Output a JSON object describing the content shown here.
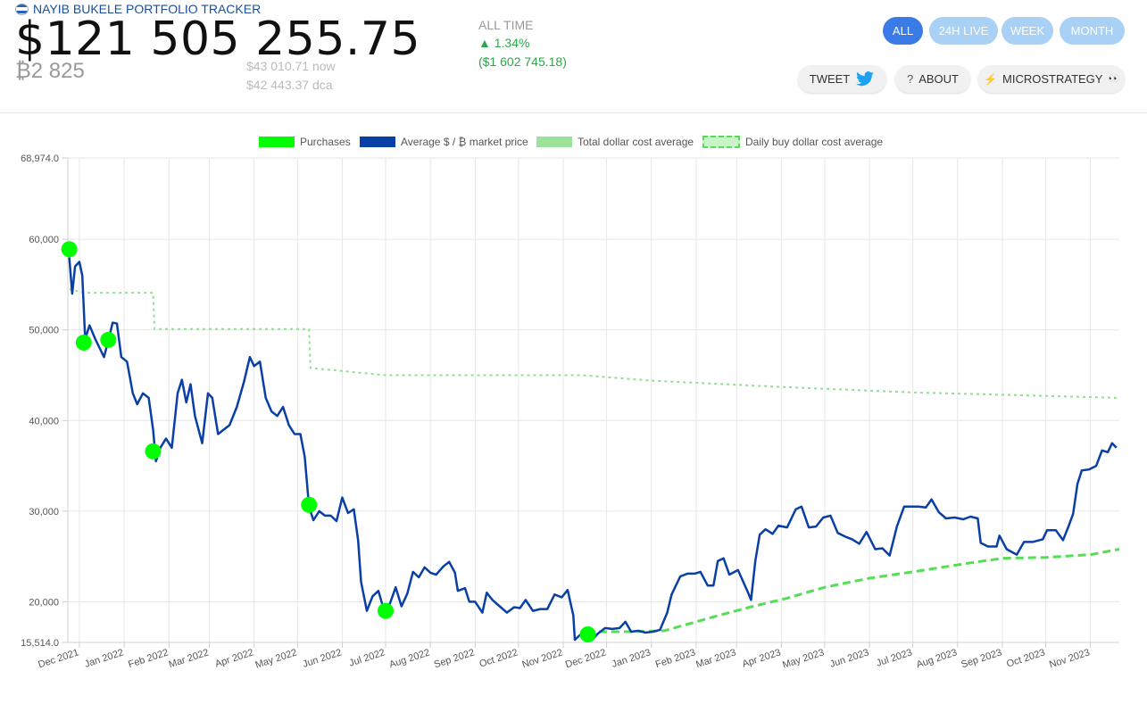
{
  "header": {
    "brand": "NAYIB BUKELE PORTFOLIO TRACKER",
    "value": "$121 505 255.75",
    "btc": "₿2 825",
    "now": "$43 010.71 now",
    "dca": "$42 443.37 dca",
    "alltime_label": "ALL TIME",
    "alltime_pct": "▲ 1.34%",
    "alltime_usd": "($1 602 745.18)"
  },
  "range_buttons": [
    "ALL",
    "24H LIVE",
    "WEEK",
    "MONTH"
  ],
  "actions": {
    "tweet": "TWEET",
    "about": "ABOUT",
    "micro": "MICROSTRATEGY",
    "micro_emoji": "👀",
    "about_icon": "?",
    "micro_icon": "⚡"
  },
  "colors": {
    "purchase": "#00ff00",
    "market": "#0a3fa6",
    "total_dca": "#90e090",
    "daily_dca": "#55dd55",
    "active": "#3a7be8",
    "inactive": "#a9d0f5"
  },
  "chart_data": {
    "type": "line",
    "legend": [
      "Purchases",
      "Average $ / ₿ market price",
      "Total dollar cost average",
      "Daily buy dollar cost average"
    ],
    "ylim": [
      15514.0,
      68974.0
    ],
    "y_ticks": [
      15514.0,
      20000,
      30000,
      40000,
      50000,
      60000,
      68974.0
    ],
    "y_tick_labels": [
      "15,514.0",
      "20,000",
      "30,000",
      "40,000",
      "50,000",
      "60,000",
      "68,974.0"
    ],
    "x_range": [
      "2021-11-23",
      "2023-11-21"
    ],
    "x_ticks": [
      "2021-12-01",
      "2022-01-01",
      "2022-02-01",
      "2022-03-01",
      "2022-04-01",
      "2022-05-01",
      "2022-06-01",
      "2022-07-01",
      "2022-08-01",
      "2022-09-01",
      "2022-10-01",
      "2022-11-01",
      "2022-12-01",
      "2023-01-01",
      "2023-02-01",
      "2023-03-01",
      "2023-04-01",
      "2023-05-01",
      "2023-06-01",
      "2023-07-01",
      "2023-08-01",
      "2023-09-01",
      "2023-10-01",
      "2023-11-01"
    ],
    "x_tick_labels": [
      "Dec 2021",
      "Jan 2022",
      "Feb 2022",
      "Mar 2022",
      "Apr 2022",
      "May 2022",
      "Jun 2022",
      "Jul 2022",
      "Aug 2022",
      "Sep 2022",
      "Oct 2022",
      "Nov 2022",
      "Dec 2022",
      "Jan 2023",
      "Feb 2023",
      "Mar 2023",
      "Apr 2023",
      "May 2023",
      "Jun 2023",
      "Jul 2023",
      "Aug 2023",
      "Sep 2023",
      "Oct 2023",
      "Nov 2023"
    ],
    "series": [
      {
        "name": "Average $ / ₿ market price",
        "points": [
          [
            "2021-11-24",
            58000
          ],
          [
            "2021-11-26",
            54000
          ],
          [
            "2021-11-28",
            57000
          ],
          [
            "2021-12-01",
            57500
          ],
          [
            "2021-12-03",
            56000
          ],
          [
            "2021-12-05",
            49000
          ],
          [
            "2021-12-08",
            50500
          ],
          [
            "2021-12-12",
            49000
          ],
          [
            "2021-12-15",
            48000
          ],
          [
            "2021-12-18",
            47000
          ],
          [
            "2021-12-21",
            48800
          ],
          [
            "2021-12-24",
            50800
          ],
          [
            "2021-12-27",
            50700
          ],
          [
            "2021-12-30",
            47000
          ],
          [
            "2022-01-03",
            46500
          ],
          [
            "2022-01-07",
            43000
          ],
          [
            "2022-01-10",
            41800
          ],
          [
            "2022-01-14",
            43000
          ],
          [
            "2022-01-18",
            42500
          ],
          [
            "2022-01-21",
            39000
          ],
          [
            "2022-01-23",
            35500
          ],
          [
            "2022-01-26",
            37000
          ],
          [
            "2022-01-30",
            38000
          ],
          [
            "2022-02-03",
            37000
          ],
          [
            "2022-02-07",
            43000
          ],
          [
            "2022-02-10",
            44500
          ],
          [
            "2022-02-13",
            42000
          ],
          [
            "2022-02-16",
            44000
          ],
          [
            "2022-02-19",
            40500
          ],
          [
            "2022-02-24",
            37500
          ],
          [
            "2022-02-28",
            43000
          ],
          [
            "2022-03-03",
            42500
          ],
          [
            "2022-03-07",
            38500
          ],
          [
            "2022-03-11",
            39000
          ],
          [
            "2022-03-15",
            39500
          ],
          [
            "2022-03-20",
            41500
          ],
          [
            "2022-03-25",
            44300
          ],
          [
            "2022-03-29",
            47000
          ],
          [
            "2022-04-01",
            46000
          ],
          [
            "2022-04-05",
            46500
          ],
          [
            "2022-04-09",
            42500
          ],
          [
            "2022-04-13",
            41000
          ],
          [
            "2022-04-17",
            40500
          ],
          [
            "2022-04-21",
            41500
          ],
          [
            "2022-04-25",
            39500
          ],
          [
            "2022-04-29",
            38500
          ],
          [
            "2022-05-03",
            38500
          ],
          [
            "2022-05-06",
            36000
          ],
          [
            "2022-05-09",
            30500
          ],
          [
            "2022-05-12",
            29000
          ],
          [
            "2022-05-16",
            30000
          ],
          [
            "2022-05-20",
            29500
          ],
          [
            "2022-05-24",
            29500
          ],
          [
            "2022-05-28",
            28900
          ],
          [
            "2022-06-01",
            31500
          ],
          [
            "2022-06-05",
            29800
          ],
          [
            "2022-06-09",
            30200
          ],
          [
            "2022-06-12",
            26800
          ],
          [
            "2022-06-14",
            22200
          ],
          [
            "2022-06-18",
            19000
          ],
          [
            "2022-06-22",
            20600
          ],
          [
            "2022-06-26",
            21200
          ],
          [
            "2022-06-30",
            19000
          ],
          [
            "2022-07-04",
            19800
          ],
          [
            "2022-07-08",
            21600
          ],
          [
            "2022-07-12",
            19500
          ],
          [
            "2022-07-16",
            20900
          ],
          [
            "2022-07-20",
            23300
          ],
          [
            "2022-07-24",
            22700
          ],
          [
            "2022-07-28",
            23800
          ],
          [
            "2022-08-01",
            23200
          ],
          [
            "2022-08-05",
            23000
          ],
          [
            "2022-08-10",
            23900
          ],
          [
            "2022-08-14",
            24400
          ],
          [
            "2022-08-18",
            23200
          ],
          [
            "2022-08-20",
            21200
          ],
          [
            "2022-08-25",
            21500
          ],
          [
            "2022-08-28",
            20000
          ],
          [
            "2022-09-01",
            20000
          ],
          [
            "2022-09-06",
            18800
          ],
          [
            "2022-09-09",
            21000
          ],
          [
            "2022-09-13",
            20200
          ],
          [
            "2022-09-18",
            19500
          ],
          [
            "2022-09-23",
            18800
          ],
          [
            "2022-09-28",
            19400
          ],
          [
            "2022-10-02",
            19300
          ],
          [
            "2022-10-06",
            20200
          ],
          [
            "2022-10-11",
            19000
          ],
          [
            "2022-10-16",
            19200
          ],
          [
            "2022-10-21",
            19200
          ],
          [
            "2022-10-26",
            20800
          ],
          [
            "2022-10-31",
            20500
          ],
          [
            "2022-11-04",
            21300
          ],
          [
            "2022-11-08",
            18500
          ],
          [
            "2022-11-09",
            15800
          ],
          [
            "2022-11-13",
            16400
          ],
          [
            "2022-11-18",
            16700
          ],
          [
            "2022-11-21",
            15800
          ],
          [
            "2022-11-25",
            16500
          ],
          [
            "2022-11-30",
            17100
          ],
          [
            "2022-12-05",
            17000
          ],
          [
            "2022-12-10",
            17100
          ],
          [
            "2022-12-14",
            17800
          ],
          [
            "2022-12-18",
            16700
          ],
          [
            "2022-12-23",
            16800
          ],
          [
            "2022-12-28",
            16600
          ],
          [
            "2023-01-02",
            16700
          ],
          [
            "2023-01-07",
            16900
          ],
          [
            "2023-01-12",
            18800
          ],
          [
            "2023-01-15",
            20800
          ],
          [
            "2023-01-21",
            22800
          ],
          [
            "2023-01-26",
            23100
          ],
          [
            "2023-01-31",
            23100
          ],
          [
            "2023-02-04",
            23300
          ],
          [
            "2023-02-09",
            21800
          ],
          [
            "2023-02-13",
            21800
          ],
          [
            "2023-02-16",
            24500
          ],
          [
            "2023-02-20",
            24800
          ],
          [
            "2023-02-24",
            23000
          ],
          [
            "2023-03-02",
            23500
          ],
          [
            "2023-03-09",
            21000
          ],
          [
            "2023-03-11",
            20200
          ],
          [
            "2023-03-14",
            24500
          ],
          [
            "2023-03-17",
            27400
          ],
          [
            "2023-03-21",
            28000
          ],
          [
            "2023-03-26",
            27500
          ],
          [
            "2023-03-30",
            28400
          ],
          [
            "2023-04-05",
            28200
          ],
          [
            "2023-04-11",
            30200
          ],
          [
            "2023-04-15",
            30500
          ],
          [
            "2023-04-20",
            28200
          ],
          [
            "2023-04-25",
            28300
          ],
          [
            "2023-04-30",
            29300
          ],
          [
            "2023-05-05",
            29500
          ],
          [
            "2023-05-10",
            27600
          ],
          [
            "2023-05-15",
            27200
          ],
          [
            "2023-05-20",
            26900
          ],
          [
            "2023-05-25",
            26400
          ],
          [
            "2023-05-30",
            27700
          ],
          [
            "2023-06-05",
            25800
          ],
          [
            "2023-06-10",
            25900
          ],
          [
            "2023-06-15",
            25100
          ],
          [
            "2023-06-20",
            28300
          ],
          [
            "2023-06-25",
            30500
          ],
          [
            "2023-06-30",
            30500
          ],
          [
            "2023-07-05",
            30500
          ],
          [
            "2023-07-10",
            30400
          ],
          [
            "2023-07-14",
            31300
          ],
          [
            "2023-07-19",
            29900
          ],
          [
            "2023-07-24",
            29200
          ],
          [
            "2023-07-30",
            29300
          ],
          [
            "2023-08-05",
            29100
          ],
          [
            "2023-08-10",
            29400
          ],
          [
            "2023-08-15",
            29200
          ],
          [
            "2023-08-17",
            26500
          ],
          [
            "2023-08-22",
            26100
          ],
          [
            "2023-08-28",
            26100
          ],
          [
            "2023-08-30",
            27300
          ],
          [
            "2023-09-04",
            25800
          ],
          [
            "2023-09-11",
            25200
          ],
          [
            "2023-09-16",
            26600
          ],
          [
            "2023-09-22",
            26600
          ],
          [
            "2023-09-29",
            26900
          ],
          [
            "2023-10-02",
            27900
          ],
          [
            "2023-10-08",
            27900
          ],
          [
            "2023-10-13",
            26800
          ],
          [
            "2023-10-17",
            28400
          ],
          [
            "2023-10-20",
            29700
          ],
          [
            "2023-10-23",
            33000
          ],
          [
            "2023-10-26",
            34500
          ],
          [
            "2023-10-31",
            34600
          ],
          [
            "2023-11-05",
            35000
          ],
          [
            "2023-11-09",
            36700
          ],
          [
            "2023-11-13",
            36500
          ],
          [
            "2023-11-16",
            37500
          ],
          [
            "2023-11-19",
            37000
          ]
        ]
      },
      {
        "name": "Total dollar cost average",
        "points": [
          [
            "2021-11-24",
            54500
          ],
          [
            "2021-12-04",
            54100
          ],
          [
            "2022-01-21",
            54100
          ],
          [
            "2022-01-22",
            50100
          ],
          [
            "2022-05-09",
            50100
          ],
          [
            "2022-05-10",
            45800
          ],
          [
            "2022-07-01",
            45000
          ],
          [
            "2022-11-14",
            45000
          ],
          [
            "2023-01-01",
            44400
          ],
          [
            "2023-04-01",
            43700
          ],
          [
            "2023-07-01",
            43100
          ],
          [
            "2023-11-21",
            42500
          ]
        ]
      },
      {
        "name": "Daily buy dollar cost average",
        "points": [
          [
            "2022-11-17",
            16700
          ],
          [
            "2022-12-15",
            16700
          ],
          [
            "2023-01-10",
            16800
          ],
          [
            "2023-02-10",
            18200
          ],
          [
            "2023-03-10",
            19400
          ],
          [
            "2023-04-05",
            20400
          ],
          [
            "2023-05-01",
            21600
          ],
          [
            "2023-06-01",
            22600
          ],
          [
            "2023-07-01",
            23300
          ],
          [
            "2023-08-10",
            24300
          ],
          [
            "2023-09-01",
            24800
          ],
          [
            "2023-10-01",
            24900
          ],
          [
            "2023-11-01",
            25200
          ],
          [
            "2023-11-21",
            25800
          ]
        ]
      },
      {
        "name": "Purchases",
        "points": [
          [
            "2021-11-24",
            58900
          ],
          [
            "2021-12-04",
            48600
          ],
          [
            "2021-12-21",
            48900
          ],
          [
            "2022-01-21",
            36600
          ],
          [
            "2022-05-09",
            30700
          ],
          [
            "2022-07-01",
            19000
          ],
          [
            "2022-11-18",
            16400
          ]
        ]
      }
    ]
  }
}
